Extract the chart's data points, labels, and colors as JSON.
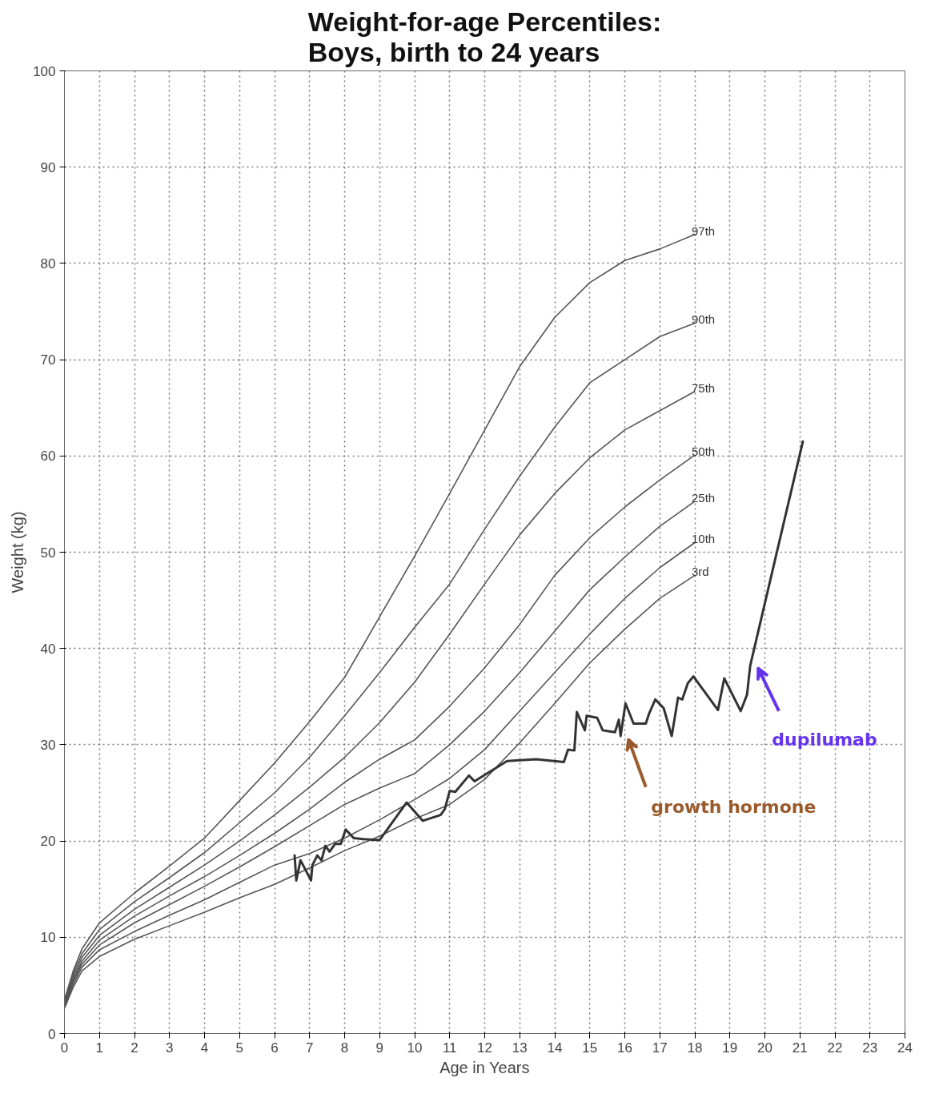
{
  "chart_data": {
    "type": "line",
    "title": "Weight-for-age Percentiles:\nBoys, birth to 24 years",
    "xlabel": "Age in Years",
    "ylabel": "Weight (kg)",
    "xlim": [
      0,
      24
    ],
    "xticks": [
      0,
      1,
      2,
      3,
      4,
      5,
      6,
      7,
      8,
      9,
      10,
      11,
      12,
      13,
      14,
      15,
      16,
      17,
      18,
      19,
      20,
      21,
      22,
      23,
      24
    ],
    "ylim": [
      0,
      100
    ],
    "yticks": [
      0,
      10,
      20,
      30,
      40,
      50,
      60,
      70,
      80,
      90,
      100
    ],
    "grid": true,
    "marker": "none",
    "line_style": "solid",
    "series": [
      {
        "name": "97th",
        "color": "#555555",
        "x": [
          0,
          0.25,
          0.5,
          1,
          2,
          3,
          4,
          5,
          6,
          7,
          8,
          9,
          10,
          11,
          12,
          13,
          14,
          15,
          16,
          17,
          18
        ],
        "values": [
          3.5,
          6.5,
          8.8,
          11.5,
          14.6,
          17.4,
          20.3,
          24.2,
          28.1,
          32.4,
          37,
          43.3,
          49.6,
          56.1,
          62.7,
          69.3,
          74.4,
          78,
          80.3,
          81.5,
          83
        ]
      },
      {
        "name": "90th",
        "color": "#555555",
        "x": [
          0,
          0.25,
          0.5,
          1,
          2,
          3,
          4,
          5,
          6,
          7,
          8,
          9,
          10,
          11,
          12,
          13,
          14,
          15,
          16,
          17,
          18
        ],
        "values": [
          3.3,
          6.2,
          8.3,
          10.8,
          13.7,
          16.2,
          18.8,
          21.9,
          25,
          28.7,
          33,
          37.5,
          42.2,
          46.7,
          52.4,
          57.9,
          63,
          67.6,
          70,
          72.4,
          73.8
        ]
      },
      {
        "name": "75th",
        "color": "#555555",
        "x": [
          0,
          0.25,
          0.5,
          1,
          2,
          3,
          4,
          5,
          6,
          7,
          8,
          9,
          10,
          11,
          12,
          13,
          14,
          15,
          16,
          17,
          18
        ],
        "values": [
          3.1,
          5.9,
          7.9,
          10.2,
          12.9,
          15.2,
          17.5,
          20,
          22.7,
          25.6,
          28.7,
          32.3,
          36.5,
          41.5,
          46.7,
          51.8,
          56.1,
          59.8,
          62.7,
          64.7,
          66.7
        ]
      },
      {
        "name": "50th",
        "color": "#555555",
        "x": [
          0,
          0.25,
          0.5,
          1,
          2,
          3,
          4,
          5,
          6,
          7,
          8,
          9,
          10,
          11,
          12,
          13,
          14,
          15,
          16,
          17,
          18
        ],
        "values": [
          2.9,
          5.6,
          7.5,
          9.7,
          12.2,
          14.3,
          16.3,
          18.5,
          20.8,
          23.3,
          26.1,
          28.5,
          30.5,
          34,
          38,
          42.5,
          47.6,
          51.5,
          54.7,
          57.5,
          60.1
        ]
      },
      {
        "name": "25th",
        "color": "#555555",
        "x": [
          0,
          0.25,
          0.5,
          1,
          2,
          3,
          4,
          5,
          6,
          7,
          8,
          9,
          10,
          11,
          12,
          13,
          14,
          15,
          16,
          17,
          18
        ],
        "values": [
          2.8,
          5.4,
          7.2,
          9.2,
          11.5,
          13.4,
          15.3,
          17.3,
          19.4,
          21.6,
          23.8,
          25.5,
          27,
          30,
          33.5,
          37.5,
          41.8,
          46.1,
          49.5,
          52.7,
          55.3
        ]
      },
      {
        "name": "10th",
        "color": "#555555",
        "x": [
          0,
          0.25,
          0.5,
          1,
          2,
          3,
          4,
          5,
          6,
          7,
          8,
          9,
          10,
          11,
          12,
          13,
          14,
          15,
          16,
          17,
          18
        ],
        "values": [
          2.7,
          5.1,
          6.9,
          8.7,
          10.6,
          12.3,
          13.9,
          15.7,
          17.5,
          18.7,
          20.3,
          22.2,
          24.3,
          26.5,
          29.5,
          33.5,
          37.5,
          41.5,
          45.2,
          48.4,
          51
        ]
      },
      {
        "name": "3rd",
        "color": "#555555",
        "x": [
          0,
          0.25,
          0.5,
          1,
          2,
          3,
          4,
          5,
          6,
          7,
          8,
          9,
          10,
          11,
          12,
          13,
          14,
          15,
          16,
          17,
          18
        ],
        "values": [
          2.6,
          4.8,
          6.5,
          8,
          9.8,
          11.2,
          12.6,
          14.1,
          15.5,
          17.2,
          19,
          20.5,
          22.3,
          23.8,
          26.4,
          30.2,
          34.3,
          38.5,
          42,
          45.2,
          47.6
        ]
      },
      {
        "color": "#333333",
        "x": [
          6.57,
          6.62,
          6.74,
          7.04,
          7.08,
          7.22,
          7.34,
          7.45,
          7.57,
          7.73,
          7.89,
          8.03,
          8.26,
          8.54,
          9.0,
          9.77,
          10.23,
          10.74,
          10.86,
          11.0,
          11.16,
          11.55,
          11.71,
          12.64,
          13.47,
          14.26,
          14.38,
          14.56,
          14.63,
          14.86,
          14.91,
          15.21,
          15.37,
          15.72,
          15.83,
          15.88,
          16.02,
          16.25,
          16.6,
          16.69,
          16.87,
          17.11,
          17.34,
          17.52,
          17.64,
          17.8,
          17.96,
          18.66,
          18.84,
          19.31,
          19.49,
          19.58,
          21.09
        ],
        "values": [
          18.6,
          15.9,
          18.0,
          15.9,
          17.5,
          18.5,
          18.0,
          19.5,
          18.9,
          19.7,
          19.7,
          21.2,
          20.3,
          20.2,
          20.1,
          24.0,
          22.1,
          22.7,
          23.3,
          25.2,
          25.1,
          26.8,
          26.2,
          28.3,
          28.5,
          28.2,
          29.5,
          29.4,
          33.4,
          31.5,
          33.0,
          32.8,
          31.5,
          31.3,
          32.6,
          30.9,
          34.3,
          32.2,
          32.2,
          33.2,
          34.7,
          33.8,
          30.9,
          34.9,
          34.7,
          36.4,
          37.1,
          33.6,
          36.9,
          33.5,
          35.2,
          38.2,
          61.6
        ]
      }
    ],
    "annotations": [
      "growth hormone",
      "dupilumab"
    ]
  }
}
